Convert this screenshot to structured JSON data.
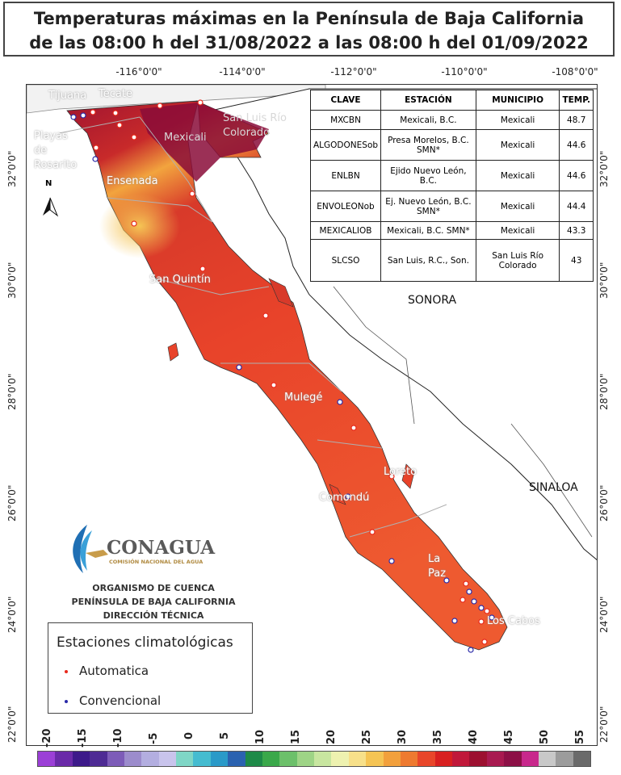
{
  "title": {
    "line1": "Temperaturas máximas en la Península de Baja California",
    "line2": "de las 08:00 h del 31/08/2022 a las 08:00 h del 01/09/2022"
  },
  "axes": {
    "longitudes": [
      "-116°0'0\"",
      "-114°0'0\"",
      "-112°0'0\"",
      "-110°0'0\"",
      "-108°0'0\""
    ],
    "latitudes": [
      "32°0'0\"",
      "30°0'0\"",
      "28°0'0\"",
      "26°0'0\"",
      "24°0'0\"",
      "22°0'0\""
    ]
  },
  "table": {
    "headers": [
      "CLAVE",
      "ESTACIÓN",
      "MUNICIPIO",
      "TEMP."
    ],
    "rows": [
      [
        "MXCBN",
        "Mexicali, B.C.",
        "Mexicali",
        "48.7"
      ],
      [
        "ALGODONESob",
        "Presa Morelos, B.C. SMN*",
        "Mexicali",
        "44.6"
      ],
      [
        "ENLBN",
        "Ejido Nuevo León, B.C.",
        "Mexicali",
        "44.6"
      ],
      [
        "ENVOLEONob",
        "Ej. Nuevo León, B.C. SMN*",
        "Mexicali",
        "44.4"
      ],
      [
        "MEXICALIOB",
        "Mexicali, B.C. SMN*",
        "Mexicali",
        "43.3"
      ],
      [
        "SLCSO",
        "San Luis, R.C., Son.",
        "San Luis Río Colorado",
        "43"
      ]
    ]
  },
  "places": {
    "tijuana": "Tijuana",
    "tecate": "Tecate",
    "playas": "Playas de Rosarito",
    "mexicali": "Mexicali",
    "sanluis": "San Luis Río Colorado",
    "ensenada": "Ensenada",
    "sanquintin": "San Quintín",
    "mulege": "Mulegé",
    "loreto": "Loreto",
    "comondu": "Comondú",
    "lapaz": "La Paz",
    "loscabos": "Los Cabos",
    "sonora": "SONORA",
    "sinaloa": "SINALOA"
  },
  "north_label": "N",
  "logo": {
    "name": "CONAGUA",
    "subtitle": "COMISIÓN NACIONAL DEL AGUA"
  },
  "organization": [
    "ORGANISMO DE CUENCA",
    "PENÍNSULA DE BAJA CALIFORNIA",
    "DIRECCIÓN TÉCNICA"
  ],
  "legend": {
    "title": "Estaciones climatológicas",
    "items": [
      {
        "label": "Automatica",
        "color": "#e8291c"
      },
      {
        "label": "Convencional",
        "color": "#2a2aa8"
      }
    ]
  },
  "scale": {
    "labels": [
      "-20",
      "-15",
      "-10",
      "-5",
      "0",
      "5",
      "10",
      "15",
      "20",
      "25",
      "30",
      "35",
      "40",
      "45",
      "50",
      "55"
    ],
    "colors": [
      "#9b3fd6",
      "#6a2aa8",
      "#3d1a8a",
      "#4e2b94",
      "#7d5cb8",
      "#9c8ccc",
      "#b3aee0",
      "#c9c4ec",
      "#7fd6c6",
      "#45bcd0",
      "#2a9ac8",
      "#2b62b0",
      "#1e8a48",
      "#3aa84a",
      "#6cc06a",
      "#9ed486",
      "#c8e6a0",
      "#eef2b0",
      "#f7e08a",
      "#f5c454",
      "#f2a03c",
      "#ee7a30",
      "#e8462a",
      "#d82020",
      "#c0183a",
      "#9c1030",
      "#a81a50",
      "#8c1046",
      "#c8288c",
      "#c8c8c8",
      "#9c9c9c",
      "#6a6a6a"
    ]
  }
}
